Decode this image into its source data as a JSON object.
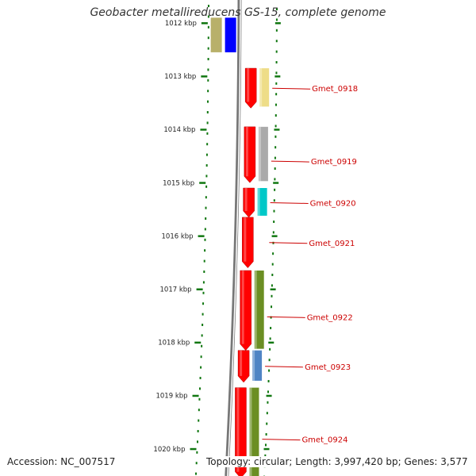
{
  "title": "Geobacter metallireducens GS-15, complete genome",
  "footer": {
    "accession": "Accession: NC_007517",
    "topology": "Topology: circular; Length: 3,997,420 bp; Genes: 3,577"
  },
  "colors": {
    "cds_strand": "#ff0000",
    "ruler_tick": "#117711",
    "backbone": "#777777",
    "label": "#cc0000",
    "khaki": "#b8b06a",
    "blue": "#0000ff",
    "pale_yellow": "#eedd88",
    "grey": "#aaaaaa",
    "cyan": "#00c8c8",
    "olive": "#6b8e23",
    "steel_blue": "#4f84c4"
  },
  "ruler": [
    {
      "kbp": 1012,
      "label": "1012 kbp"
    },
    {
      "kbp": 1013,
      "label": "1013 kbp"
    },
    {
      "kbp": 1014,
      "label": "1014 kbp"
    },
    {
      "kbp": 1015,
      "label": "1015 kbp"
    },
    {
      "kbp": 1016,
      "label": "1016 kbp"
    },
    {
      "kbp": 1017,
      "label": "1017 kbp"
    },
    {
      "kbp": 1018,
      "label": "1018 kbp"
    },
    {
      "kbp": 1019,
      "label": "1019 kbp"
    },
    {
      "kbp": 1020,
      "label": "1020 kbp"
    }
  ],
  "genes": [
    {
      "locus": "Gmet_0918",
      "start_kbp": 1012.85,
      "end_kbp": 1013.6,
      "cog_color": "pale_yellow"
    },
    {
      "locus": "Gmet_0919",
      "start_kbp": 1013.95,
      "end_kbp": 1015.0,
      "cog_color": "grey"
    },
    {
      "locus": "Gmet_0920",
      "start_kbp": 1015.1,
      "end_kbp": 1015.65,
      "cog_color": "cyan"
    },
    {
      "locus": "Gmet_0921",
      "start_kbp": 1015.65,
      "end_kbp": 1016.6,
      "cog_color": ""
    },
    {
      "locus": "Gmet_0922",
      "start_kbp": 1016.65,
      "end_kbp": 1018.15,
      "cog_color": "olive"
    },
    {
      "locus": "Gmet_0923",
      "start_kbp": 1018.15,
      "end_kbp": 1018.75,
      "cog_color": "steel_blue"
    },
    {
      "locus": "Gmet_0924",
      "start_kbp": 1018.85,
      "end_kbp": 1020.55,
      "cog_color": "olive"
    }
  ],
  "top_partial_features": [
    {
      "start_kbp": 1011.9,
      "end_kbp": 1012.55,
      "color": "khaki"
    },
    {
      "start_kbp": 1011.9,
      "end_kbp": 1012.55,
      "color": "blue"
    }
  ]
}
